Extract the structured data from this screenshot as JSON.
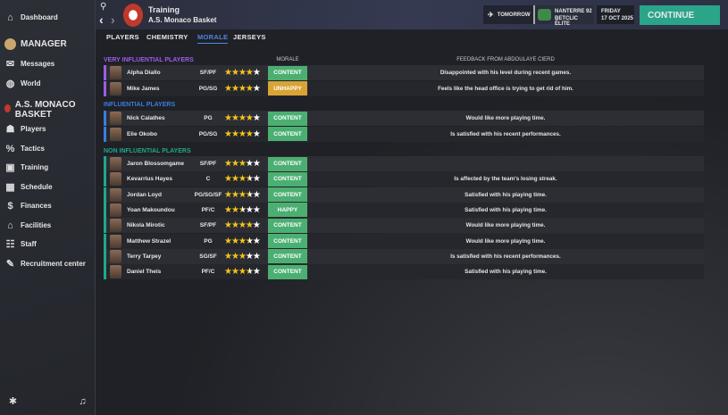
{
  "sidebar": {
    "dashboard": "Dashboard",
    "manager": "MANAGER",
    "messages": "Messages",
    "world": "World",
    "club": "A.S. MONACO BASKET",
    "items": [
      {
        "label": "Players",
        "icon": "players-icon"
      },
      {
        "label": "Tactics",
        "icon": "tactics-icon"
      },
      {
        "label": "Training",
        "icon": "training-icon"
      },
      {
        "label": "Schedule",
        "icon": "calendar-icon"
      },
      {
        "label": "Finances",
        "icon": "finances-icon"
      },
      {
        "label": "Facilities",
        "icon": "facilities-icon"
      },
      {
        "label": "Staff",
        "icon": "staff-icon"
      },
      {
        "label": "Recruitment center",
        "icon": "recruitment-icon"
      }
    ]
  },
  "header": {
    "title": "Training",
    "subtitle": "A.S. Monaco Basket",
    "next_label": "TOMORROW",
    "opponent_line1": "NANTERRE 92",
    "opponent_line2": "BETCLIC ÉLITE",
    "day": "FRIDAY",
    "date": "17 OCT 2025",
    "continue": "CONTINUE"
  },
  "tabs": [
    {
      "label": "PLAYERS"
    },
    {
      "label": "CHEMISTRY"
    },
    {
      "label": "MORALE",
      "active": true
    },
    {
      "label": "JERSEYS"
    }
  ],
  "table": {
    "morale_header": "MORALE",
    "feedback_header": "FEEDBACK FROM ABDOULAYE CIERD",
    "sections": [
      {
        "title": "VERY INFLUENTIAL PLAYERS",
        "color": "#9b5de5",
        "players": [
          {
            "name": "Alpha Diallo",
            "pos": "SF/PF",
            "stars": 4,
            "morale": "CONTENT",
            "feedback": "Disappointed with his level during recent games."
          },
          {
            "name": "Mike James",
            "pos": "PG/SG",
            "stars": 4,
            "morale": "UNHAPPY",
            "feedback": "Feels like the head office is trying to get rid of him."
          }
        ]
      },
      {
        "title": "INFLUENTIAL PLAYERS",
        "color": "#3b7ddd",
        "players": [
          {
            "name": "Nick Calathes",
            "pos": "PG",
            "stars": 4,
            "morale": "CONTENT",
            "feedback": "Would like more playing time."
          },
          {
            "name": "Elie Okobo",
            "pos": "PG/SG",
            "stars": 4,
            "morale": "CONTENT",
            "feedback": "Is satisfied with his recent performances."
          }
        ]
      },
      {
        "title": "NON INFLUENTIAL PLAYERS",
        "color": "#1fa88a",
        "players": [
          {
            "name": "Jaron Blossomgame",
            "pos": "SF/PF",
            "stars": 3,
            "morale": "CONTENT",
            "feedback": ""
          },
          {
            "name": "Kevarrius Hayes",
            "pos": "C",
            "stars": 3.5,
            "morale": "CONTENT",
            "feedback": "Is affected by the team's losing streak."
          },
          {
            "name": "Jordan Loyd",
            "pos": "PG/SG/SF",
            "stars": 3.5,
            "morale": "CONTENT",
            "feedback": "Satisfied with his playing time."
          },
          {
            "name": "Yoan Makoundou",
            "pos": "PF/C",
            "stars": 2.5,
            "morale": "HAPPY",
            "feedback": "Satisfied with his playing time."
          },
          {
            "name": "Nikola Mirotic",
            "pos": "SF/PF",
            "stars": 4,
            "morale": "CONTENT",
            "feedback": "Would like more playing time."
          },
          {
            "name": "Matthew Strazel",
            "pos": "PG",
            "stars": 3.5,
            "morale": "CONTENT",
            "feedback": "Would like more playing time."
          },
          {
            "name": "Terry Tarpey",
            "pos": "SG/SF",
            "stars": 3,
            "morale": "CONTENT",
            "feedback": "Is satisfied with his recent performances."
          },
          {
            "name": "Daniel Theis",
            "pos": "PF/C",
            "stars": 3.5,
            "morale": "CONTENT",
            "feedback": "Satisfied with his playing time."
          }
        ]
      }
    ]
  },
  "colors": {
    "content": "#4caf72",
    "unhappy": "#d9a336",
    "accent": "#2aa58a",
    "tab_active": "#4f86e0"
  }
}
